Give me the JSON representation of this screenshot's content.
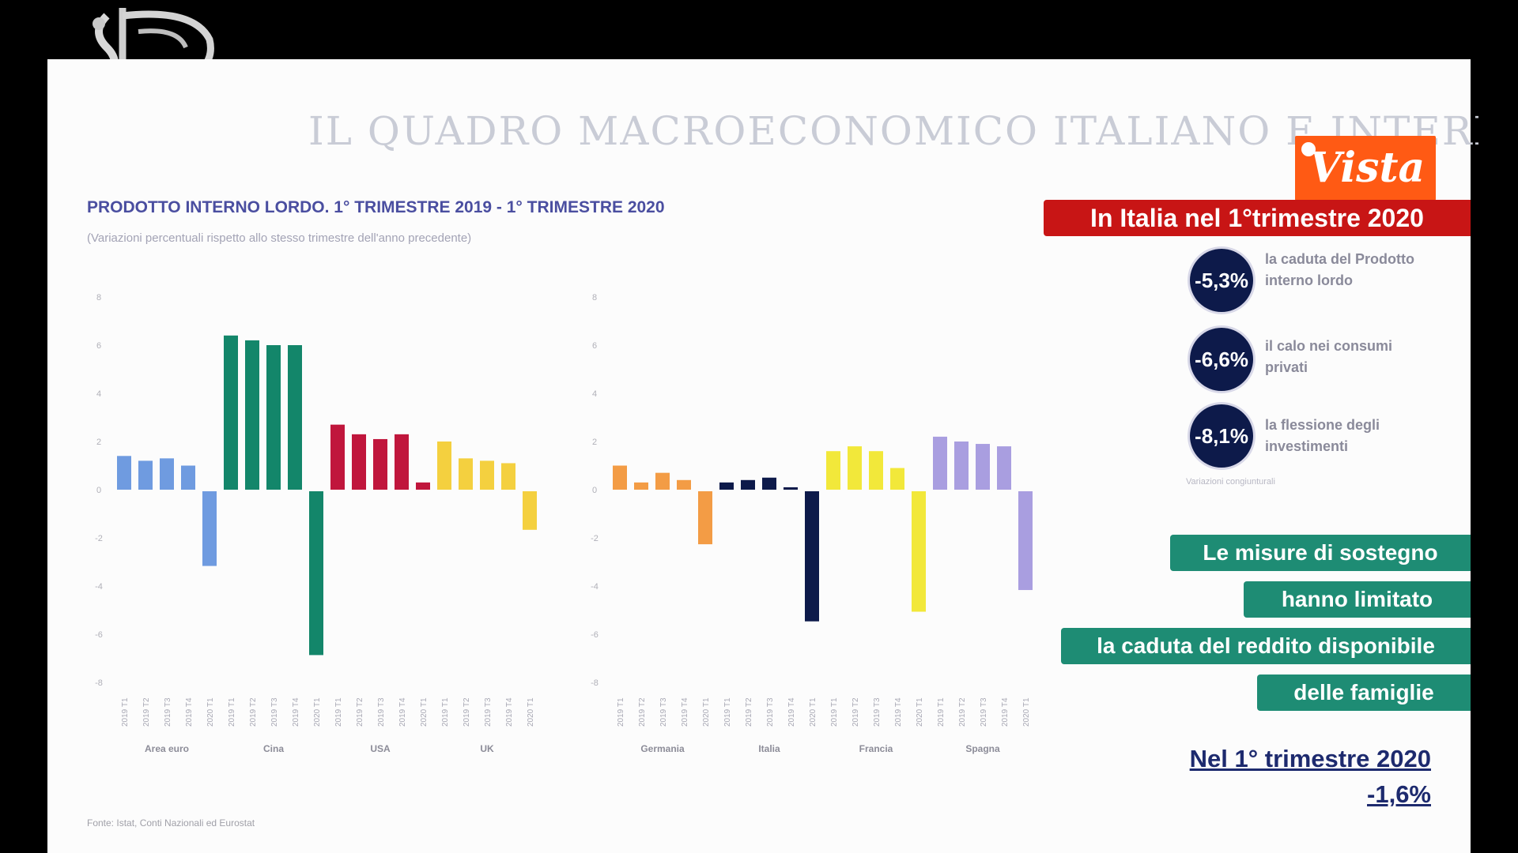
{
  "slide_title": "IL QUADRO MACROECONOMICO ITALIANO E INTERNAZIONALE",
  "chart_title": "PRODOTTO INTERNO LORDO. 1° TRIMESTRE 2019 - 1° TRIMESTRE 2020",
  "chart_subtitle": "(Variazioni percentuali rispetto allo stesso trimestre dell'anno precedente)",
  "source": "Fonte: Istat, Conti Nazionali ed Eurostat",
  "watermark": "Vista",
  "colors": {
    "area_euro": "#6f9be0",
    "cina": "#13866a",
    "usa": "#c0163c",
    "uk": "#f4d03f",
    "germania": "#f39c45",
    "italia": "#0d1a4a",
    "francia": "#f2e83a",
    "spagna": "#a99ee0",
    "red_banner": "#c81515",
    "teal_banner": "#1e8c74",
    "circle": "#0d1a4a"
  },
  "chart_data": [
    {
      "type": "bar",
      "ylim": [
        -8,
        8
      ],
      "yticks": [
        "8",
        "6",
        "4",
        "2",
        "0",
        "-2",
        "-4",
        "-6",
        "-8"
      ],
      "period_labels": [
        "2019 T1",
        "2019 T2",
        "2019 T3",
        "2019 T4",
        "2020 T1"
      ],
      "series": [
        {
          "name": "Area euro",
          "values": [
            1.4,
            1.2,
            1.3,
            1.0,
            -3.1
          ]
        },
        {
          "name": "Cina",
          "values": [
            6.4,
            6.2,
            6.0,
            6.0,
            -6.8
          ]
        },
        {
          "name": "USA",
          "values": [
            2.7,
            2.3,
            2.1,
            2.3,
            0.3
          ]
        },
        {
          "name": "UK",
          "values": [
            2.0,
            1.3,
            1.2,
            1.1,
            -1.6
          ]
        }
      ]
    },
    {
      "type": "bar",
      "ylim": [
        -8,
        8
      ],
      "yticks": [
        "8",
        "6",
        "4",
        "2",
        "0",
        "-2",
        "-4",
        "-6",
        "-8"
      ],
      "period_labels": [
        "2019 T1",
        "2019 T2",
        "2019 T3",
        "2019 T4",
        "2020 T1"
      ],
      "series": [
        {
          "name": "Germania",
          "values": [
            1.0,
            0.3,
            0.7,
            0.4,
            -2.2
          ]
        },
        {
          "name": "Italia",
          "values": [
            0.3,
            0.4,
            0.5,
            0.1,
            -5.4
          ]
        },
        {
          "name": "Francia",
          "values": [
            1.6,
            1.8,
            1.6,
            0.9,
            -5.0
          ]
        },
        {
          "name": "Spagna",
          "values": [
            2.2,
            2.0,
            1.9,
            1.8,
            -4.1
          ]
        }
      ]
    }
  ],
  "right_panel": {
    "banner": "In Italia nel 1°trimestre 2020",
    "stats": [
      {
        "value": "-5,3%",
        "label": "la caduta del Prodotto interno lordo"
      },
      {
        "value": "-6,6%",
        "label": "il calo nei consumi privati"
      },
      {
        "value": "-8,1%",
        "label": "la flessione degli investimenti"
      }
    ],
    "note": "Variazioni congiunturali",
    "teal_lines": [
      "Le misure di sostegno",
      "hanno limitato",
      "la caduta del reddito disponibile",
      "delle famiglie"
    ],
    "bottom_label": "Nel 1° trimestre 2020",
    "bottom_value": "-1,6%"
  }
}
